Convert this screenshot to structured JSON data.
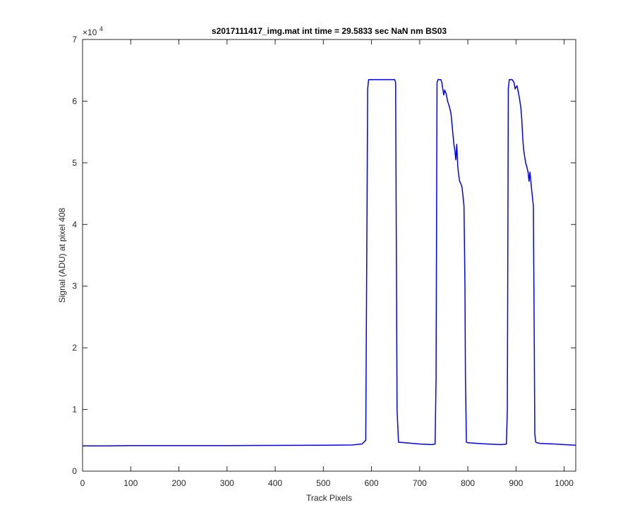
{
  "chart_data": {
    "type": "line",
    "title": "s2017111417_img.mat int time = 29.5833 sec  NaN nm BS03",
    "xlabel": "Track Pixels",
    "ylabel": "Signal (ADU) at pixel 408",
    "xlim": [
      0,
      1024
    ],
    "ylim": [
      0,
      7
    ],
    "y_exponent_label": "×10",
    "y_exponent_power": "4",
    "xticks": [
      0,
      100,
      200,
      300,
      400,
      500,
      600,
      700,
      800,
      900,
      1000
    ],
    "yticks": [
      0,
      1,
      2,
      3,
      4,
      5,
      6,
      7
    ],
    "grid": false,
    "box": true,
    "line_color": "#0000ff",
    "series": [
      {
        "x": [
          0,
          50,
          100,
          200,
          300,
          400,
          500,
          560,
          580,
          588,
          592,
          594,
          598,
          610,
          630,
          648,
          650,
          653,
          656,
          670,
          700,
          725,
          732,
          734,
          736,
          738,
          744,
          746,
          750,
          752,
          755,
          758,
          762,
          765,
          768,
          771,
          773,
          775,
          777,
          779,
          781,
          783,
          786,
          788,
          792,
          794,
          795,
          797,
          800,
          840,
          870,
          880,
          882,
          884,
          886,
          888,
          892,
          896,
          898,
          902,
          906,
          910,
          912,
          914,
          916,
          918,
          920,
          922,
          925,
          927,
          929,
          932,
          934,
          936,
          938,
          939,
          941,
          944,
          950,
          980,
          1000,
          1024
        ],
        "values": [
          0.41,
          0.41,
          0.415,
          0.415,
          0.415,
          0.418,
          0.42,
          0.425,
          0.44,
          0.5,
          6.2,
          6.35,
          6.35,
          6.35,
          6.35,
          6.35,
          6.3,
          1.0,
          0.47,
          0.46,
          0.44,
          0.43,
          0.44,
          1.5,
          6.3,
          6.35,
          6.35,
          6.3,
          6.1,
          6.18,
          6.12,
          6.0,
          5.9,
          5.8,
          5.55,
          5.3,
          5.2,
          5.05,
          5.3,
          4.95,
          4.8,
          4.7,
          4.65,
          4.6,
          4.3,
          3.0,
          1.5,
          0.47,
          0.46,
          0.44,
          0.43,
          0.44,
          1.0,
          6.2,
          6.35,
          6.35,
          6.35,
          6.3,
          6.2,
          6.25,
          6.1,
          5.9,
          5.7,
          5.4,
          5.2,
          5.1,
          5.0,
          4.95,
          4.85,
          4.7,
          4.85,
          4.6,
          4.45,
          4.3,
          2.0,
          0.6,
          0.47,
          0.46,
          0.45,
          0.44,
          0.43,
          0.42
        ]
      }
    ]
  }
}
